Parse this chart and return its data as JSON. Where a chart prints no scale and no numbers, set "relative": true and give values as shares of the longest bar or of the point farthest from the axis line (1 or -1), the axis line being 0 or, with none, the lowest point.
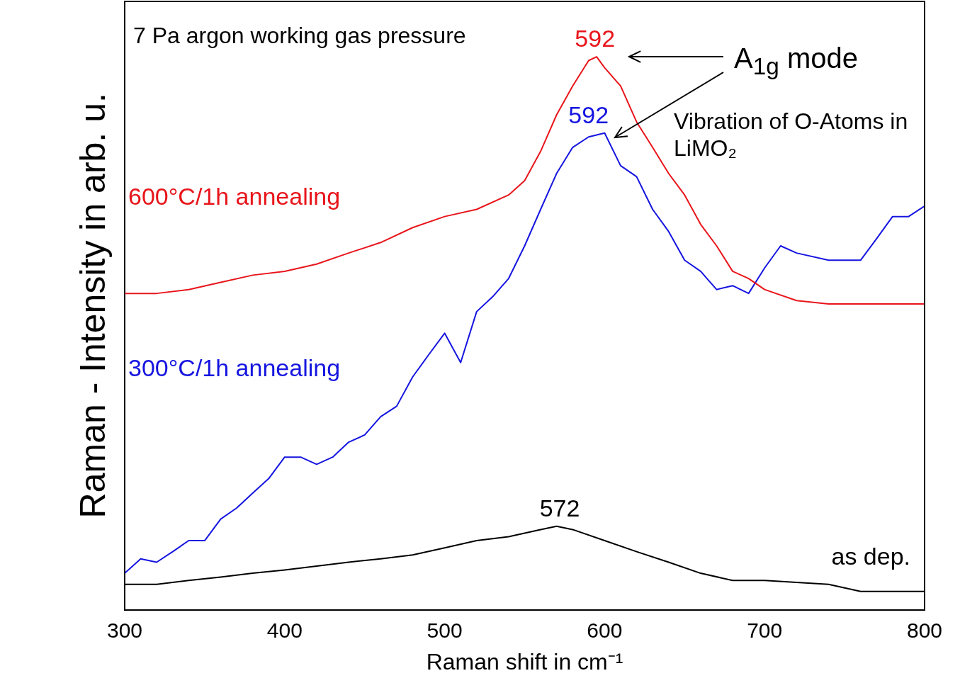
{
  "chart_data": {
    "type": "line",
    "xlabel": "Raman shift in cm⁻¹",
    "ylabel": "Raman - Intensity in arb. u.",
    "relative": true,
    "xlim": [
      300,
      800
    ],
    "xticks": [
      300,
      400,
      500,
      600,
      700,
      800
    ],
    "grid": false,
    "legend": false,
    "marker": "none",
    "line_style": "solid",
    "annotations": [
      "7 Pa argon working gas pressure",
      "A$_{1g}$ mode",
      "Vibration of O-Atoms in LiMO₂",
      {
        "text": "592",
        "x": 594,
        "y": 1.0
      },
      {
        "text": "592",
        "x": 590,
        "y": 0.862
      },
      {
        "text": "572",
        "x": 572,
        "y": 0.151
      }
    ],
    "series": [
      {
        "name": "600°C/1h annealing",
        "color": "#e8151b",
        "x": [
          300,
          320,
          340,
          360,
          380,
          400,
          420,
          440,
          460,
          480,
          500,
          520,
          540,
          550,
          560,
          570,
          580,
          590,
          595,
          600,
          610,
          620,
          630,
          640,
          650,
          660,
          670,
          680,
          690,
          700,
          720,
          740,
          760,
          780,
          800
        ],
        "values": [
          0.572,
          0.572,
          0.579,
          0.592,
          0.605,
          0.612,
          0.625,
          0.645,
          0.664,
          0.691,
          0.711,
          0.724,
          0.75,
          0.776,
          0.829,
          0.895,
          0.947,
          0.993,
          1.0,
          0.98,
          0.947,
          0.882,
          0.836,
          0.789,
          0.75,
          0.697,
          0.658,
          0.612,
          0.599,
          0.579,
          0.559,
          0.553,
          0.553,
          0.553,
          0.553
        ]
      },
      {
        "name": "300°C/1h annealing",
        "color": "#1515e0",
        "x": [
          300,
          310,
          320,
          330,
          340,
          350,
          360,
          370,
          380,
          390,
          400,
          410,
          420,
          430,
          440,
          450,
          460,
          470,
          480,
          490,
          500,
          510,
          520,
          530,
          540,
          550,
          560,
          570,
          580,
          590,
          600,
          610,
          620,
          630,
          640,
          650,
          660,
          670,
          680,
          690,
          700,
          710,
          720,
          740,
          760,
          770,
          780,
          790,
          800
        ],
        "values": [
          0.066,
          0.092,
          0.086,
          0.105,
          0.125,
          0.125,
          0.164,
          0.184,
          0.211,
          0.237,
          0.276,
          0.276,
          0.263,
          0.276,
          0.303,
          0.316,
          0.349,
          0.368,
          0.421,
          0.461,
          0.5,
          0.447,
          0.539,
          0.566,
          0.599,
          0.658,
          0.724,
          0.789,
          0.836,
          0.855,
          0.862,
          0.803,
          0.783,
          0.724,
          0.684,
          0.632,
          0.612,
          0.579,
          0.586,
          0.572,
          0.618,
          0.658,
          0.645,
          0.632,
          0.632,
          0.671,
          0.711,
          0.711,
          0.73
        ]
      },
      {
        "name": "as dep.",
        "color": "#000000",
        "x": [
          300,
          320,
          340,
          360,
          380,
          400,
          420,
          440,
          460,
          480,
          500,
          520,
          540,
          560,
          570,
          580,
          600,
          620,
          640,
          660,
          680,
          700,
          740,
          760,
          800
        ],
        "values": [
          0.046,
          0.046,
          0.053,
          0.059,
          0.066,
          0.072,
          0.079,
          0.086,
          0.092,
          0.099,
          0.112,
          0.125,
          0.132,
          0.145,
          0.151,
          0.145,
          0.125,
          0.105,
          0.086,
          0.066,
          0.053,
          0.053,
          0.046,
          0.033,
          0.033
        ]
      }
    ]
  }
}
